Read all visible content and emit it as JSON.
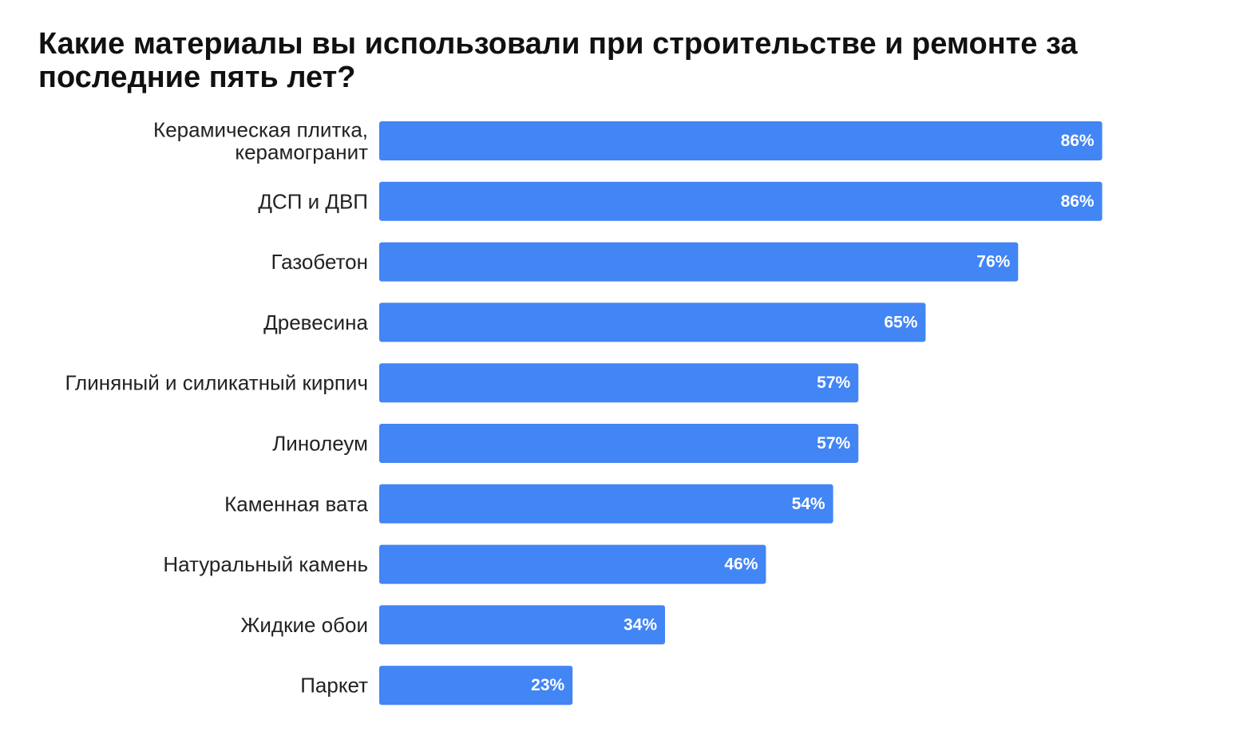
{
  "chart_data": {
    "type": "bar",
    "orientation": "horizontal",
    "title": "Какие материалы вы использовали при строительстве и ремонте за последние пять лет?",
    "categories": [
      "Керамическая плитка, керамогранит",
      "ДСП и ДВП",
      "Газобетон",
      "Древесина",
      "Глиняный и силикатный кирпич",
      "Линолеум",
      "Каменная вата",
      "Натуральный камень",
      "Жидкие обои",
      "Паркет"
    ],
    "category_lines": [
      [
        "Керамическая плитка,",
        "керамогранит"
      ],
      [
        "ДСП и ДВП"
      ],
      [
        "Газобетон"
      ],
      [
        "Древесина"
      ],
      [
        "Глиняный и силикатный кирпич"
      ],
      [
        "Линолеум"
      ],
      [
        "Каменная вата"
      ],
      [
        "Натуральный камень"
      ],
      [
        "Жидкие обои"
      ],
      [
        "Паркет"
      ]
    ],
    "values": [
      86,
      86,
      76,
      65,
      57,
      57,
      54,
      46,
      34,
      23
    ],
    "value_labels": [
      "86%",
      "86%",
      "76%",
      "65%",
      "57%",
      "57%",
      "54%",
      "46%",
      "34%",
      "23%"
    ],
    "unit": "%",
    "xlim": [
      0,
      100
    ],
    "grid": false,
    "legend": "none",
    "bar_color": "#4285f4",
    "value_label_color": "#ffffff"
  }
}
